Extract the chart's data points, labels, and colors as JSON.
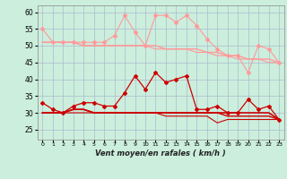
{
  "x": [
    0,
    1,
    2,
    3,
    4,
    5,
    6,
    7,
    8,
    9,
    10,
    11,
    12,
    13,
    14,
    15,
    16,
    17,
    18,
    19,
    20,
    21,
    22,
    23
  ],
  "series_pink_upper": [
    55,
    51,
    51,
    51,
    51,
    51,
    51,
    53,
    59,
    54,
    50,
    59,
    59,
    57,
    59,
    56,
    52,
    49,
    47,
    47,
    42,
    50,
    49,
    45
  ],
  "series_pink_line1": [
    51,
    51,
    51,
    51,
    50,
    50,
    50,
    50,
    50,
    50,
    50,
    50,
    49,
    49,
    49,
    49,
    48,
    48,
    47,
    47,
    46,
    46,
    46,
    45
  ],
  "series_pink_line2": [
    51,
    51,
    51,
    51,
    50,
    50,
    50,
    50,
    50,
    50,
    50,
    49,
    49,
    49,
    49,
    48,
    48,
    47,
    47,
    46,
    46,
    46,
    45,
    45
  ],
  "series_red_zigzag": [
    33,
    31,
    30,
    32,
    33,
    33,
    32,
    32,
    36,
    41,
    37,
    42,
    39,
    40,
    41,
    31,
    31,
    32,
    30,
    30,
    34,
    31,
    32,
    28
  ],
  "series_red_line1": [
    30,
    30,
    30,
    31,
    31,
    30,
    30,
    30,
    30,
    30,
    30,
    30,
    30,
    30,
    30,
    30,
    30,
    30,
    30,
    30,
    30,
    30,
    30,
    28
  ],
  "series_red_line2": [
    30,
    30,
    30,
    31,
    31,
    30,
    30,
    30,
    30,
    30,
    30,
    30,
    30,
    30,
    30,
    30,
    30,
    30,
    29,
    29,
    29,
    29,
    29,
    28
  ],
  "series_red_line3": [
    30,
    30,
    30,
    30,
    30,
    30,
    30,
    30,
    30,
    30,
    30,
    30,
    29,
    29,
    29,
    29,
    29,
    27,
    28,
    28,
    28,
    28,
    28,
    28
  ],
  "series_dashed": [
    22,
    22,
    22,
    22,
    22,
    22,
    22,
    22,
    22,
    22,
    22,
    22,
    22,
    22,
    22,
    22,
    22,
    22,
    22,
    22,
    22,
    22,
    22,
    22
  ],
  "background_color": "#cceedd",
  "grid_color": "#aabbcc",
  "pink_color": "#ff9999",
  "red_color": "#cc0000",
  "xlabel": "Vent moyen/en rafales ( km/h )",
  "ylim": [
    22,
    62
  ],
  "yticks": [
    25,
    30,
    35,
    40,
    45,
    50,
    55,
    60
  ],
  "xlim": [
    -0.5,
    23.5
  ],
  "xticks": [
    0,
    1,
    2,
    3,
    4,
    5,
    6,
    7,
    8,
    9,
    10,
    11,
    12,
    13,
    14,
    15,
    16,
    17,
    18,
    19,
    20,
    21,
    22,
    23
  ]
}
